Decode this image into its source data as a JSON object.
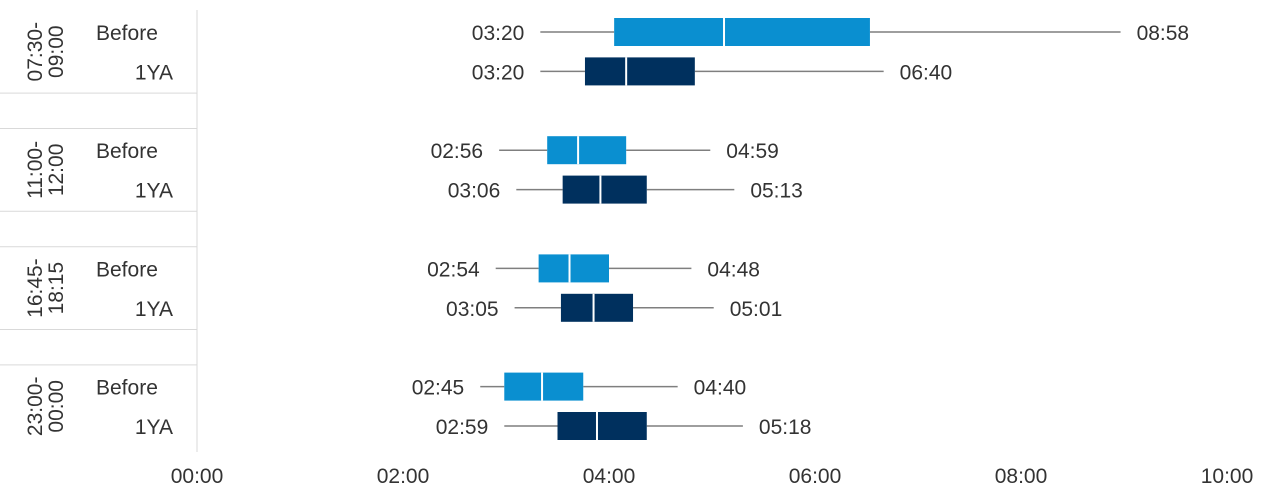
{
  "chart_data": {
    "type": "box",
    "orientation": "horizontal",
    "x_ticks": [
      "00:00",
      "02:00",
      "04:00",
      "06:00",
      "08:00",
      "10:00"
    ],
    "xlim": [
      "00:00",
      "10:00"
    ],
    "grid": false,
    "legend": "none",
    "colors": {
      "Before": "#0a8fd0",
      "1YA": "#00305e",
      "whisker": "#7f7f7f",
      "divider": "#d9d9d9"
    },
    "groups": [
      {
        "label_line1": "07:30-",
        "label_line2": "09:00",
        "rows": [
          {
            "series": "Before",
            "whisker_low": "03:20",
            "q1": "04:03",
            "median": "05:07",
            "q3": "06:32",
            "whisker_high": "08:58"
          },
          {
            "series": "1YA",
            "whisker_low": "03:20",
            "q1": "03:46",
            "median": "04:10",
            "q3": "04:50",
            "whisker_high": "06:40"
          }
        ]
      },
      {
        "label_line1": "11:00-",
        "label_line2": "12:00",
        "rows": [
          {
            "series": "Before",
            "whisker_low": "02:56",
            "q1": "03:24",
            "median": "03:42",
            "q3": "04:10",
            "whisker_high": "04:59"
          },
          {
            "series": "1YA",
            "whisker_low": "03:06",
            "q1": "03:33",
            "median": "03:55",
            "q3": "04:22",
            "whisker_high": "05:13"
          }
        ]
      },
      {
        "label_line1": "16:45-",
        "label_line2": "18:15",
        "rows": [
          {
            "series": "Before",
            "whisker_low": "02:54",
            "q1": "03:19",
            "median": "03:37",
            "q3": "04:00",
            "whisker_high": "04:48"
          },
          {
            "series": "1YA",
            "whisker_low": "03:05",
            "q1": "03:32",
            "median": "03:51",
            "q3": "04:14",
            "whisker_high": "05:01"
          }
        ]
      },
      {
        "label_line1": "23:00-",
        "label_line2": "00:00",
        "rows": [
          {
            "series": "Before",
            "whisker_low": "02:45",
            "q1": "02:59",
            "median": "03:21",
            "q3": "03:45",
            "whisker_high": "04:40"
          },
          {
            "series": "1YA",
            "whisker_low": "02:59",
            "q1": "03:30",
            "median": "03:53",
            "q3": "04:22",
            "whisker_high": "05:18"
          }
        ]
      }
    ]
  }
}
